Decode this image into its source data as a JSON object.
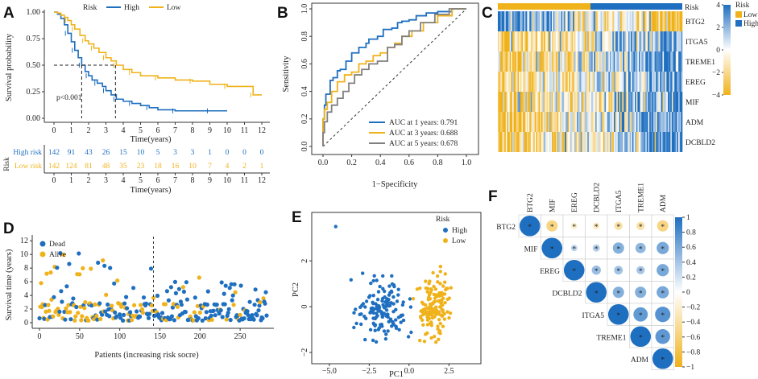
{
  "colors": {
    "high": "#1f6fc0",
    "low": "#f0b21b",
    "gray": "#808080",
    "white": "#ffffff"
  },
  "panels": {
    "A": "A",
    "B": "B",
    "C": "C",
    "D": "D",
    "E": "E",
    "F": "F"
  },
  "chart_data": [
    {
      "id": "A",
      "type": "line",
      "title": "",
      "xlabel": "Time(years)",
      "ylabel": "Survival probability",
      "xlim": [
        0,
        12
      ],
      "ylim": [
        0,
        1
      ],
      "xticks": [
        "0",
        "1",
        "2",
        "3",
        "4",
        "5",
        "6",
        "7",
        "8",
        "9",
        "10",
        "11",
        "12"
      ],
      "yticks": [
        "0.00",
        "0.25",
        "0.50",
        "0.75",
        "1.00"
      ],
      "legend_title": "Risk",
      "legend": [
        "High",
        "Low"
      ],
      "annotation": "p<0.001",
      "median_survival": {
        "High": 1.6,
        "Low": 3.55
      },
      "series": [
        {
          "name": "High",
          "x": [
            0,
            0.2,
            0.4,
            0.6,
            0.8,
            1.0,
            1.2,
            1.4,
            1.6,
            1.8,
            2.0,
            2.2,
            2.5,
            2.8,
            3.0,
            3.3,
            3.6,
            4.0,
            4.5,
            5.0,
            5.5,
            6.0,
            7.0,
            8.0,
            9.0,
            10.0
          ],
          "y": [
            1.0,
            0.98,
            0.94,
            0.88,
            0.8,
            0.72,
            0.64,
            0.57,
            0.5,
            0.44,
            0.4,
            0.36,
            0.33,
            0.3,
            0.26,
            0.22,
            0.18,
            0.16,
            0.14,
            0.12,
            0.1,
            0.08,
            0.07,
            0.07,
            0.07,
            0.07
          ]
        },
        {
          "name": "Low",
          "x": [
            0,
            0.2,
            0.4,
            0.6,
            0.8,
            1.0,
            1.2,
            1.5,
            1.8,
            2.0,
            2.3,
            2.6,
            3.0,
            3.3,
            3.6,
            4.0,
            4.5,
            5.0,
            6.0,
            7.0,
            8.0,
            9.0,
            10.0,
            11.0,
            11.5,
            12.0
          ],
          "y": [
            1.0,
            0.99,
            0.97,
            0.95,
            0.92,
            0.88,
            0.84,
            0.78,
            0.73,
            0.7,
            0.66,
            0.62,
            0.57,
            0.54,
            0.5,
            0.46,
            0.43,
            0.4,
            0.38,
            0.36,
            0.35,
            0.32,
            0.3,
            0.3,
            0.22,
            0.22
          ]
        }
      ]
    },
    {
      "id": "A-risk-table",
      "type": "table",
      "title": "Risk",
      "xlabel": "Time(years)",
      "columns": [
        "0",
        "1",
        "2",
        "3",
        "4",
        "5",
        "6",
        "7",
        "8",
        "9",
        "10",
        "11",
        "12"
      ],
      "rows": [
        {
          "label": "High risk",
          "values": [
            "142",
            "91",
            "43",
            "26",
            "15",
            "10",
            "5",
            "3",
            "3",
            "1",
            "0",
            "0",
            "0"
          ]
        },
        {
          "label": "Low risk",
          "values": [
            "142",
            "124",
            "81",
            "48",
            "35",
            "23",
            "18",
            "16",
            "10",
            "7",
            "4",
            "2",
            "1"
          ]
        }
      ]
    },
    {
      "id": "B",
      "type": "line",
      "xlabel": "1−Specificity",
      "ylabel": "Sensitivity",
      "xlim": [
        0,
        1
      ],
      "ylim": [
        0,
        1
      ],
      "xticks": [
        "0.0",
        "0.2",
        "0.4",
        "0.6",
        "0.8",
        "1.0"
      ],
      "yticks": [
        "0.0",
        "0.2",
        "0.4",
        "0.6",
        "0.8",
        "1.0"
      ],
      "series": [
        {
          "name": "AUC at 1 years: 0.791",
          "x": [
            0,
            0.01,
            0.02,
            0.05,
            0.07,
            0.1,
            0.12,
            0.16,
            0.2,
            0.25,
            0.3,
            0.32,
            0.38,
            0.42,
            0.48,
            0.52,
            0.55,
            0.6,
            0.65,
            0.72,
            0.8,
            0.9,
            1.0
          ],
          "y": [
            0,
            0.2,
            0.3,
            0.38,
            0.48,
            0.5,
            0.55,
            0.56,
            0.62,
            0.68,
            0.72,
            0.75,
            0.78,
            0.8,
            0.85,
            0.86,
            0.9,
            0.91,
            0.92,
            0.95,
            0.97,
            0.98,
            1.0
          ]
        },
        {
          "name": "AUC at 3 years: 0.688",
          "x": [
            0,
            0.01,
            0.03,
            0.06,
            0.1,
            0.15,
            0.2,
            0.25,
            0.3,
            0.35,
            0.4,
            0.45,
            0.5,
            0.55,
            0.62,
            0.7,
            0.8,
            0.9,
            1.0
          ],
          "y": [
            0,
            0.2,
            0.27,
            0.32,
            0.4,
            0.47,
            0.52,
            0.54,
            0.6,
            0.62,
            0.66,
            0.68,
            0.72,
            0.75,
            0.8,
            0.84,
            0.9,
            0.95,
            1.0
          ]
        },
        {
          "name": "AUC at 5 years: 0.678",
          "x": [
            0,
            0.01,
            0.03,
            0.06,
            0.1,
            0.14,
            0.18,
            0.22,
            0.27,
            0.32,
            0.38,
            0.45,
            0.5,
            0.55,
            0.6,
            0.68,
            0.78,
            0.88,
            1.0
          ],
          "y": [
            0,
            0.1,
            0.18,
            0.25,
            0.3,
            0.35,
            0.4,
            0.46,
            0.52,
            0.56,
            0.6,
            0.62,
            0.72,
            0.74,
            0.8,
            0.84,
            0.9,
            0.96,
            1.0
          ]
        }
      ],
      "reference_line": "diagonal"
    },
    {
      "id": "C",
      "type": "heatmap",
      "rows": [
        "BTG2",
        "ITGA5",
        "TREME1",
        "EREG",
        "MIF",
        "ADM",
        "DCBLD2"
      ],
      "column_annotation": {
        "title": "Risk",
        "groups": [
          "Low",
          "High"
        ]
      },
      "colorbar": {
        "min": -4,
        "max": 4,
        "ticks": [
          "4",
          "2",
          "0",
          "−2",
          "−4"
        ]
      },
      "legend_title": "Risk",
      "legend": [
        "Low",
        "High"
      ]
    },
    {
      "id": "D",
      "type": "scatter",
      "xlabel": "Patients (increasing risk socre)",
      "ylabel": "Survival time (years)",
      "xlim": [
        0,
        284
      ],
      "ylim": [
        0,
        12.5
      ],
      "xticks": [
        "0",
        "50",
        "100",
        "150",
        "200",
        "250"
      ],
      "yticks": [
        "0",
        "2",
        "4",
        "6",
        "8",
        "10",
        "12"
      ],
      "legend": [
        "Dead",
        "Alive"
      ],
      "cutoff_patient": 142
    },
    {
      "id": "E",
      "type": "scatter",
      "xlabel": "PC1",
      "ylabel": "PC2",
      "xlim": [
        -5.8,
        4.3
      ],
      "ylim": [
        -2.3,
        3.8
      ],
      "xticks": [
        "−5.0",
        "−2.5",
        "0.0",
        "2.5"
      ],
      "yticks": [
        "−2",
        "0",
        "2"
      ],
      "legend_title": "Risk",
      "legend": [
        "High",
        "Low"
      ]
    },
    {
      "id": "F",
      "type": "heatmap",
      "variables": [
        "BTG2",
        "MIF",
        "EREG",
        "DCBLD2",
        "ITGA5",
        "TREME1",
        "ADM"
      ],
      "corr": [
        [
          1.0,
          -0.55,
          -0.22,
          -0.3,
          -0.4,
          -0.4,
          -0.55
        ],
        [
          -0.55,
          1.0,
          0.3,
          0.35,
          0.55,
          0.5,
          0.6
        ],
        [
          -0.22,
          0.3,
          1.0,
          0.45,
          0.42,
          0.4,
          0.6
        ],
        [
          -0.3,
          0.35,
          0.45,
          1.0,
          0.55,
          0.55,
          0.6
        ],
        [
          -0.4,
          0.55,
          0.42,
          0.55,
          1.0,
          0.7,
          0.75
        ],
        [
          -0.4,
          0.5,
          0.4,
          0.55,
          0.7,
          1.0,
          0.72
        ],
        [
          -0.55,
          0.6,
          0.6,
          0.6,
          0.75,
          0.72,
          1.0
        ]
      ],
      "significance_marker": "*",
      "colorbar": {
        "min": -1,
        "max": 1,
        "ticks": [
          "1",
          "0.8",
          "0.6",
          "0.4",
          "0.2",
          "0",
          "−0.2",
          "−0.4",
          "−0.6",
          "−0.8",
          "−1"
        ]
      }
    }
  ]
}
